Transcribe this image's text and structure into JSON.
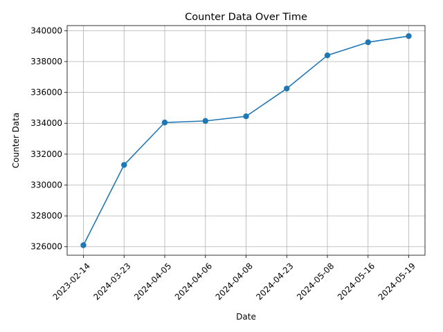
{
  "chart_data": {
    "type": "line",
    "title": "Counter Data Over Time",
    "xlabel": "Date",
    "ylabel": "Counter Data",
    "categories": [
      "2023-02-14",
      "2024-03-23",
      "2024-04-05",
      "2024-04-06",
      "2024-04-08",
      "2024-04-23",
      "2024-05-08",
      "2024-05-16",
      "2024-05-19"
    ],
    "series": [
      {
        "values": [
          326100,
          331300,
          334050,
          334150,
          334450,
          336250,
          338400,
          339250,
          339650
        ],
        "color": "#1f77b4",
        "marker": "circle"
      }
    ],
    "yticks": [
      "326000",
      "328000",
      "330000",
      "332000",
      "334000",
      "336000",
      "338000",
      "340000"
    ],
    "ylim": [
      325450,
      340330
    ],
    "grid": true,
    "xtick_rotation": 45
  }
}
